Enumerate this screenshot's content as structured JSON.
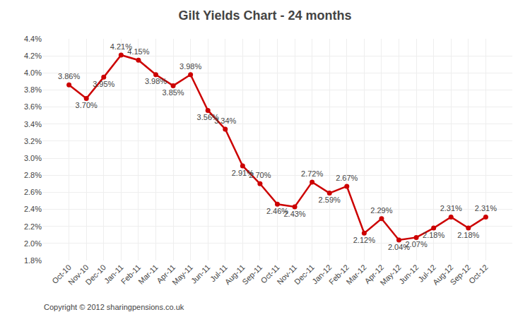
{
  "chart_data": {
    "type": "line",
    "title": "Gilt Yields Chart - 24 months",
    "categories": [
      "Oct-10",
      "Nov-10",
      "Dec-10",
      "Jan-11",
      "Feb-11",
      "Mar-11",
      "Apr-11",
      "May-11",
      "Jun-11",
      "Jul-11",
      "Aug-11",
      "Sep-11",
      "Oct-11",
      "Nov-11",
      "Dec-11",
      "Jan-12",
      "Feb-12",
      "Mar-12",
      "Apr-12",
      "May-12",
      "Jun-12",
      "Jul-12",
      "Aug-12",
      "Sep-12",
      "Oct-12"
    ],
    "values": [
      3.86,
      3.7,
      3.95,
      4.21,
      4.15,
      3.98,
      3.85,
      3.98,
      3.56,
      3.34,
      2.91,
      2.7,
      2.46,
      2.43,
      2.72,
      2.59,
      2.67,
      2.12,
      2.29,
      2.04,
      2.07,
      2.18,
      2.31,
      2.18,
      2.31
    ],
    "value_labels": [
      "3.86%",
      "3.70%",
      "3.95%",
      "4.21%",
      "4.15%",
      "3.98%",
      "3.85%",
      "3.98%",
      "3.56%",
      "3.34%",
      "2.91%",
      "2.70%",
      "2.46%",
      "2.43%",
      "2.72%",
      "2.59%",
      "2.67%",
      "2.12%",
      "2.29%",
      "2.04%",
      "2.07%",
      "2.18%",
      "2.31%",
      "2.18%",
      "2.31%"
    ],
    "data_labels": true,
    "color": "#cc0000",
    "marker": "circle",
    "ylim": [
      1.8,
      4.4
    ],
    "yticks": [
      {
        "value": 1.8,
        "label": "1.8%"
      },
      {
        "value": 2.0,
        "label": "2.0%"
      },
      {
        "value": 2.2,
        "label": "2.2%"
      },
      {
        "value": 2.4,
        "label": "2.4%"
      },
      {
        "value": 2.6,
        "label": "2.6%"
      },
      {
        "value": 2.8,
        "label": "2.8%"
      },
      {
        "value": 3.0,
        "label": "3.0%"
      },
      {
        "value": 3.2,
        "label": "3.2%"
      },
      {
        "value": 3.4,
        "label": "3.4%"
      },
      {
        "value": 3.6,
        "label": "3.6%"
      },
      {
        "value": 3.8,
        "label": "3.8%"
      },
      {
        "value": 4.0,
        "label": "4.0%"
      },
      {
        "value": 4.2,
        "label": "4.2%"
      },
      {
        "value": 4.4,
        "label": "4.4%"
      }
    ],
    "grid": true,
    "annotations": [
      "Copyright © 2012 sharingpensions.co.uk"
    ]
  }
}
